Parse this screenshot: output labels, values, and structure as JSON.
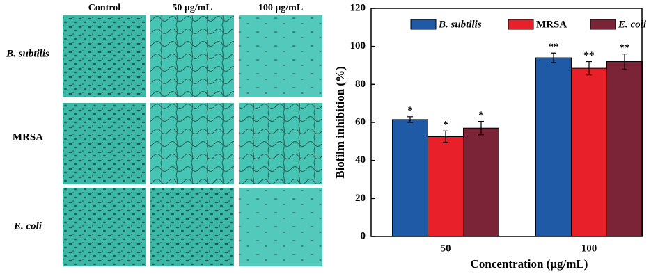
{
  "image_grid": {
    "columns": [
      "Control",
      "50 μg/mL",
      "100 μg/mL"
    ],
    "rows": [
      "B. subtilis",
      "MRSA",
      "E. coli"
    ]
  },
  "chart_data": {
    "type": "bar",
    "ylabel": "Biofilm inhibition (%)",
    "xlabel": "Concentration (μg/mL)",
    "categories": [
      "50",
      "100"
    ],
    "series": [
      {
        "name": "B. subtilis",
        "color": "#1f5aa6",
        "values": [
          61.5,
          94
        ],
        "errors": [
          1.5,
          2.5
        ],
        "significance": [
          "*",
          "**"
        ]
      },
      {
        "name": "MRSA",
        "color": "#e8202a",
        "values": [
          52.5,
          88.5
        ],
        "errors": [
          3,
          3.5
        ],
        "significance": [
          "*",
          "**"
        ]
      },
      {
        "name": "E. coli",
        "color": "#7b2337",
        "values": [
          57,
          92
        ],
        "errors": [
          3.5,
          4
        ],
        "significance": [
          "*",
          "**"
        ]
      }
    ],
    "ylim": [
      0,
      120
    ],
    "yticks": [
      0,
      20,
      40,
      60,
      80,
      100,
      120
    ],
    "legend": "top"
  }
}
